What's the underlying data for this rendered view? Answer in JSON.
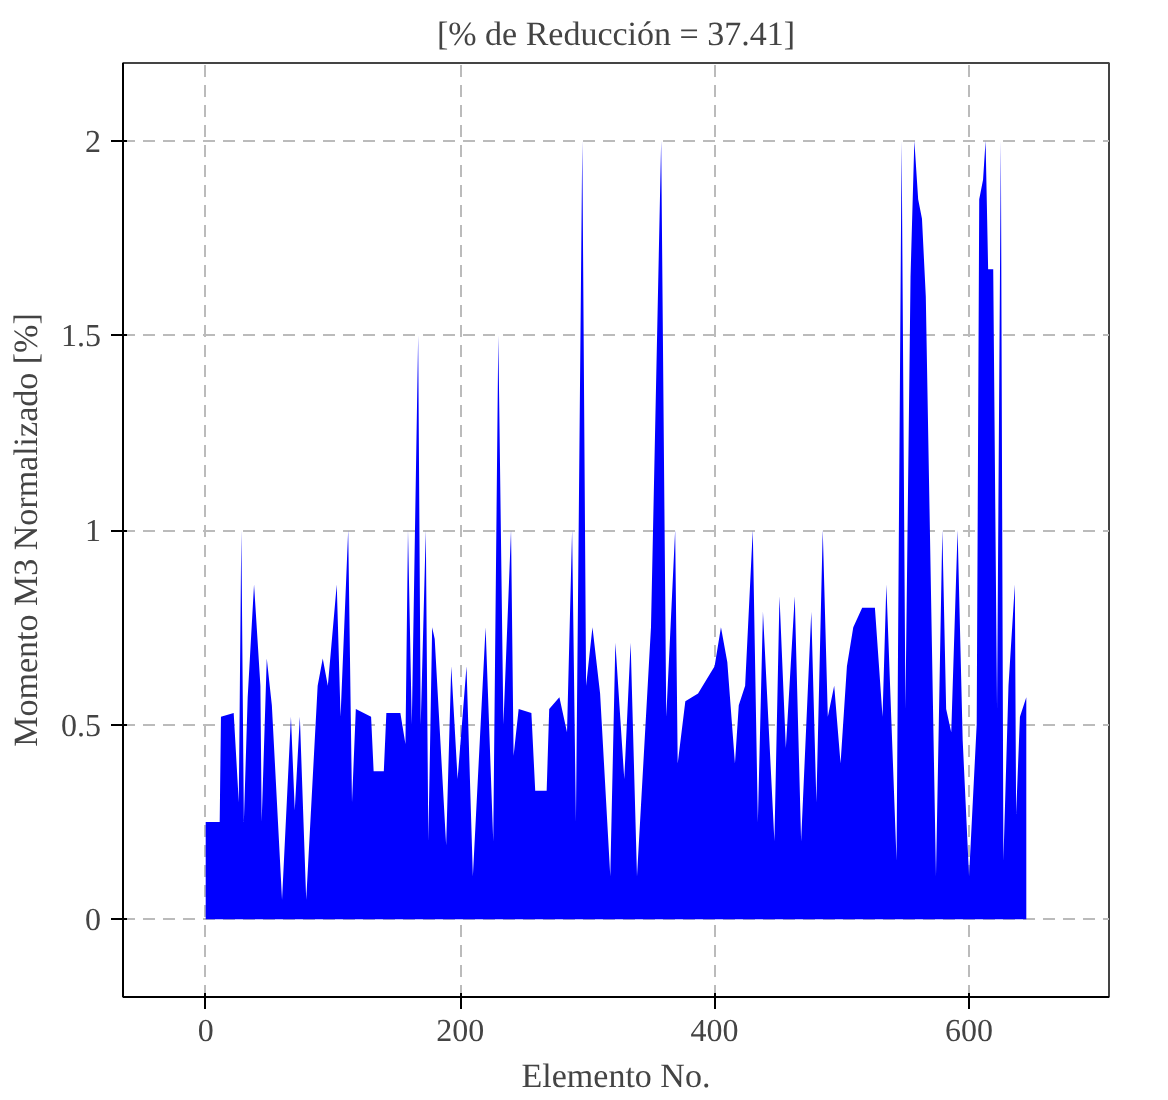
{
  "chart_data": {
    "type": "area",
    "title": "[% de Reducción = 37.41]",
    "xlabel": "Elemento No.",
    "ylabel": "Momento M3 Normalizado [%]",
    "x": [
      0,
      11,
      12,
      22,
      26,
      28,
      30,
      33,
      38,
      43,
      44,
      48,
      52,
      60,
      67,
      70,
      74,
      79,
      88,
      92,
      96,
      103,
      106,
      112,
      115,
      118,
      130,
      132,
      140,
      142,
      153,
      157,
      159,
      162,
      167,
      169,
      173,
      175,
      178,
      180,
      189,
      193,
      198,
      205,
      210,
      220,
      226,
      230,
      234,
      240,
      242,
      246,
      256,
      259,
      268,
      270,
      278,
      284,
      288,
      291,
      296,
      299,
      304,
      310,
      318,
      322,
      329,
      334,
      339,
      350,
      358,
      362,
      369,
      371,
      377,
      387,
      400,
      405,
      410,
      416,
      419,
      424,
      430,
      434,
      438,
      447,
      451,
      456,
      463,
      468,
      476,
      480,
      485,
      489,
      494,
      499,
      504,
      509,
      516,
      526,
      532,
      535,
      543,
      547,
      550,
      554,
      557,
      560,
      563,
      566,
      574,
      579,
      582,
      586,
      591,
      595,
      600,
      606,
      608,
      611,
      613,
      615,
      619,
      622,
      625,
      627,
      631,
      636,
      637,
      640,
      645
    ],
    "series": [
      {
        "color": "#0000ff",
        "values": [
          0.25,
          0.25,
          0.52,
          0.53,
          0.3,
          1.0,
          0.25,
          0.57,
          0.86,
          0.6,
          0.25,
          0.67,
          0.55,
          0.05,
          0.52,
          0.28,
          0.52,
          0.05,
          0.6,
          0.67,
          0.6,
          0.86,
          0.52,
          1.0,
          0.3,
          0.54,
          0.52,
          0.38,
          0.38,
          0.53,
          0.53,
          0.45,
          1.0,
          0.5,
          1.5,
          0.5,
          1.0,
          0.2,
          0.75,
          0.72,
          0.19,
          0.65,
          0.36,
          0.65,
          0.11,
          0.75,
          0.2,
          1.5,
          0.5,
          1.0,
          0.42,
          0.54,
          0.53,
          0.33,
          0.33,
          0.54,
          0.57,
          0.48,
          1.0,
          0.25,
          2.0,
          0.6,
          0.75,
          0.58,
          0.11,
          0.71,
          0.36,
          0.71,
          0.11,
          0.75,
          2.0,
          0.52,
          1.0,
          0.4,
          0.56,
          0.58,
          0.65,
          0.75,
          0.66,
          0.4,
          0.55,
          0.6,
          1.0,
          0.25,
          0.79,
          0.2,
          0.83,
          0.44,
          0.83,
          0.2,
          0.79,
          0.3,
          1.0,
          0.52,
          0.6,
          0.4,
          0.65,
          0.75,
          0.8,
          0.8,
          0.52,
          0.86,
          0.15,
          2.0,
          0.54,
          1.65,
          2.0,
          1.85,
          1.8,
          1.6,
          0.11,
          1.0,
          0.54,
          0.48,
          1.0,
          0.46,
          0.11,
          0.5,
          1.85,
          1.9,
          2.0,
          1.67,
          1.67,
          0.54,
          2.0,
          0.15,
          0.6,
          0.86,
          0.27,
          0.52,
          0.57
        ]
      }
    ],
    "xlim": [
      -65,
      710
    ],
    "ylim": [
      -0.2,
      2.2
    ],
    "xticks": [
      0,
      200,
      400,
      600
    ],
    "yticks": [
      0,
      0.5,
      1,
      1.5,
      2
    ],
    "grid": true
  }
}
